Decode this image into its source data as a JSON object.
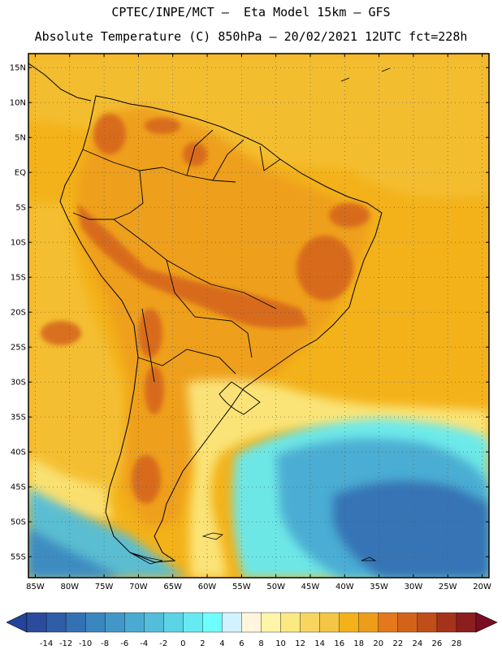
{
  "header": {
    "line1": "CPTEC/INPE/MCT –  Eta Model 15km – GFS",
    "line2": "Absolute Temperature (C) 850hPa – 20/02/2021 12UTC fct=228h"
  },
  "map": {
    "lat_labels": [
      "15N",
      "10N",
      "5N",
      "EQ",
      "5S",
      "10S",
      "15S",
      "20S",
      "25S",
      "30S",
      "35S",
      "40S",
      "45S",
      "50S",
      "55S"
    ],
    "lon_labels": [
      "85W",
      "80W",
      "75W",
      "70W",
      "65W",
      "60W",
      "55W",
      "50W",
      "45W",
      "40W",
      "35W",
      "30W",
      "25W",
      "20W"
    ],
    "lat_values": [
      15,
      10,
      5,
      0,
      -5,
      -10,
      -15,
      -20,
      -25,
      -30,
      -35,
      -40,
      -45,
      -50,
      -55
    ],
    "lon_values": [
      -85,
      -80,
      -75,
      -70,
      -65,
      -60,
      -55,
      -50,
      -45,
      -40,
      -35,
      -30,
      -25,
      -20
    ],
    "extent": {
      "lon_min": -86,
      "lon_max": -19,
      "lat_min": -58,
      "lat_max": 17
    },
    "base_color": "#f3b21a",
    "land_color": "#ee9d1a",
    "hot_color": "#d4631a"
  },
  "legend": {
    "labels": [
      "-14",
      "-12",
      "-10",
      "-8",
      "-6",
      "-4",
      "-2",
      "0",
      "2",
      "4",
      "6",
      "8",
      "10",
      "12",
      "14",
      "16",
      "18",
      "20",
      "22",
      "24",
      "26",
      "28"
    ],
    "under_color": "#23449a",
    "over_color": "#7a0d24",
    "colors": [
      "#2b4c9c",
      "#2f5da8",
      "#3471b4",
      "#3a86bf",
      "#4297c8",
      "#4aaad2",
      "#53bedb",
      "#5dd3e6",
      "#66eaf1",
      "#6effff",
      "#d1f3ff",
      "#fff6dd",
      "#fff5a8",
      "#fbe982",
      "#f7d560",
      "#f4c643",
      "#f3b21a",
      "#ee9d1a",
      "#e4781a",
      "#d4631a",
      "#c04e1a",
      "#a5321a",
      "#8c1e1e"
    ]
  }
}
